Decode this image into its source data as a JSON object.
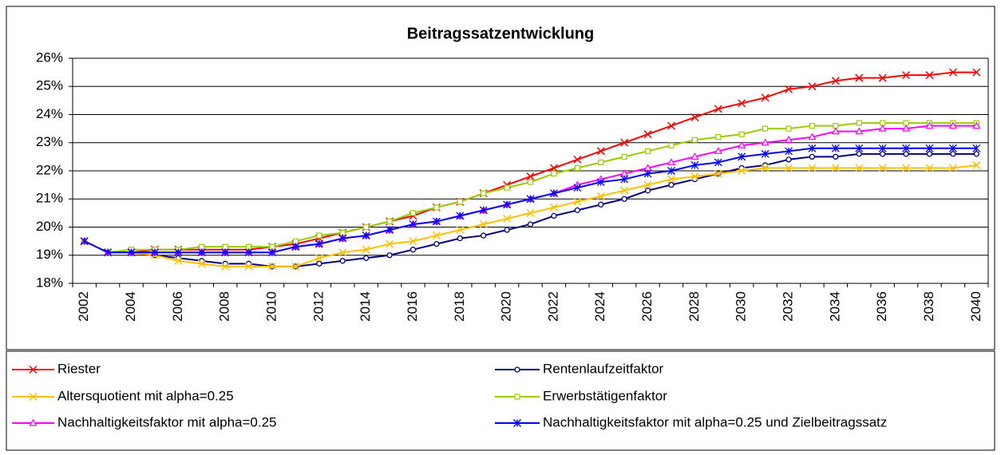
{
  "chart_data": {
    "type": "line",
    "title": "Beitragssatzentwicklung",
    "categories": [
      "2002",
      null,
      "2004",
      null,
      "2006",
      null,
      "2008",
      null,
      "2010",
      null,
      "2012",
      null,
      "2014",
      null,
      "2016",
      null,
      "2018",
      null,
      "2020",
      null,
      "2022",
      null,
      "2024",
      null,
      "2026",
      null,
      "2028",
      null,
      "2030",
      null,
      "2032",
      null,
      "2034",
      null,
      "2036",
      null,
      "2038",
      null,
      "2040"
    ],
    "ylim": [
      18,
      26
    ],
    "yticks": [
      {
        "value": 18,
        "label": "18%"
      },
      {
        "value": 19,
        "label": "19%"
      },
      {
        "value": 20,
        "label": "20%"
      },
      {
        "value": 21,
        "label": "21%"
      },
      {
        "value": 22,
        "label": "22%"
      },
      {
        "value": 23,
        "label": "23%"
      },
      {
        "value": 24,
        "label": "24%"
      },
      {
        "value": 25,
        "label": "25%"
      },
      {
        "value": 26,
        "label": "26%"
      }
    ],
    "grid": true,
    "legend": "bottom",
    "series": [
      {
        "name": "Riester",
        "color": "#ff0000",
        "marker": "x",
        "values": [
          19.5,
          19.1,
          19.1,
          19.2,
          19.2,
          19.2,
          19.2,
          19.2,
          19.3,
          19.4,
          19.6,
          19.8,
          20.0,
          20.2,
          20.4,
          20.7,
          20.9,
          21.2,
          21.5,
          21.8,
          22.1,
          22.4,
          22.7,
          23.0,
          23.3,
          23.6,
          23.9,
          24.2,
          24.4,
          24.6,
          24.9,
          25.0,
          25.2,
          25.3,
          25.3,
          25.4,
          25.4,
          25.5,
          25.5
        ]
      },
      {
        "name": "Rentenlaufzeitfaktor",
        "color": "#000080",
        "marker": "circle",
        "values": [
          19.5,
          19.1,
          19.1,
          19.0,
          18.9,
          18.8,
          18.7,
          18.7,
          18.6,
          18.6,
          18.7,
          18.8,
          18.9,
          19.0,
          19.2,
          19.4,
          19.6,
          19.7,
          19.9,
          20.1,
          20.4,
          20.6,
          20.8,
          21.0,
          21.3,
          21.5,
          21.7,
          21.9,
          22.1,
          22.2,
          22.4,
          22.5,
          22.5,
          22.6,
          22.6,
          22.6,
          22.6,
          22.6,
          22.6
        ]
      },
      {
        "name": "Altersquotient mit alpha=0.25",
        "color": "#ffc000",
        "marker": "x",
        "values": [
          19.5,
          19.1,
          19.1,
          19.0,
          18.8,
          18.7,
          18.6,
          18.6,
          18.6,
          18.6,
          18.9,
          19.1,
          19.2,
          19.4,
          19.5,
          19.7,
          19.9,
          20.1,
          20.3,
          20.5,
          20.7,
          20.9,
          21.1,
          21.3,
          21.5,
          21.7,
          21.8,
          21.9,
          22.0,
          22.1,
          22.1,
          22.1,
          22.1,
          22.1,
          22.1,
          22.1,
          22.1,
          22.1,
          22.2
        ]
      },
      {
        "name": "Erwerbstätigenfaktor",
        "color": "#99cc00",
        "marker": "square",
        "values": [
          19.5,
          19.1,
          19.2,
          19.2,
          19.2,
          19.3,
          19.3,
          19.3,
          19.3,
          19.5,
          19.7,
          19.8,
          20.0,
          20.2,
          20.5,
          20.7,
          20.9,
          21.2,
          21.4,
          21.6,
          21.9,
          22.1,
          22.3,
          22.5,
          22.7,
          22.9,
          23.1,
          23.2,
          23.3,
          23.5,
          23.5,
          23.6,
          23.6,
          23.7,
          23.7,
          23.7,
          23.7,
          23.7,
          23.7
        ]
      },
      {
        "name": "Nachhaltigkeitsfaktor mit alpha=0.25",
        "color": "#ff00ff",
        "marker": "triangle",
        "values": [
          19.5,
          19.1,
          19.1,
          19.1,
          19.1,
          19.1,
          19.1,
          19.1,
          19.1,
          19.3,
          19.4,
          19.6,
          19.7,
          19.9,
          20.1,
          20.2,
          20.4,
          20.6,
          20.8,
          21.0,
          21.2,
          21.5,
          21.7,
          21.9,
          22.1,
          22.3,
          22.5,
          22.7,
          22.9,
          23.0,
          23.1,
          23.2,
          23.4,
          23.4,
          23.5,
          23.5,
          23.6,
          23.6,
          23.6
        ]
      },
      {
        "name": "Nachhaltigkeitsfaktor mit alpha=0.25 und Zielbeitragssatz",
        "color": "#0000ff",
        "marker": "star",
        "values": [
          19.5,
          19.1,
          19.1,
          19.1,
          19.1,
          19.1,
          19.1,
          19.1,
          19.1,
          19.3,
          19.4,
          19.6,
          19.7,
          19.9,
          20.1,
          20.2,
          20.4,
          20.6,
          20.8,
          21.0,
          21.2,
          21.4,
          21.6,
          21.7,
          21.9,
          22.0,
          22.2,
          22.3,
          22.5,
          22.6,
          22.7,
          22.8,
          22.8,
          22.8,
          22.8,
          22.8,
          22.8,
          22.8,
          22.8
        ]
      }
    ]
  }
}
